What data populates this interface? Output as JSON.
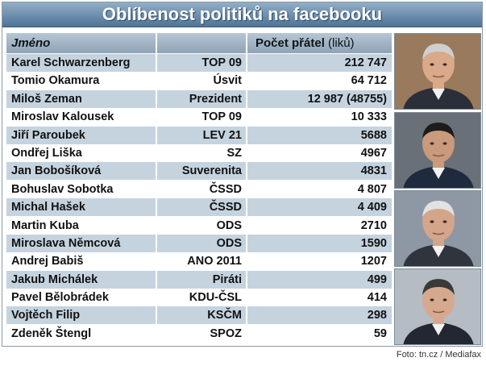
{
  "title": "Oblíbenost politiků na facebooku",
  "credit": "Foto: tn.cz / Mediafax",
  "chart_data": {
    "type": "table",
    "columns": [
      "Jméno",
      "",
      "Počet přátel"
    ],
    "count_unit": "(liků)",
    "rows": [
      {
        "name": "Karel Schwarzenberg",
        "party": "TOP 09",
        "count": "212 747"
      },
      {
        "name": "Tomio Okamura",
        "party": "Úsvit",
        "count": "64 712"
      },
      {
        "name": "Miloš Zeman",
        "party": "Prezident",
        "count": "12 987 (48755)"
      },
      {
        "name": "Miroslav Kalousek",
        "party": "TOP 09",
        "count": "10 333"
      },
      {
        "name": "Jiří Paroubek",
        "party": "LEV 21",
        "count": "5688"
      },
      {
        "name": "Ondřej Liška",
        "party": "SZ",
        "count": "4967"
      },
      {
        "name": "Jan Bobošíková",
        "party": "Suverenita",
        "count": "4831"
      },
      {
        "name": "Bohuslav Sobotka",
        "party": "ČSSD",
        "count": "4 807"
      },
      {
        "name": "Michal Hašek",
        "party": "ČSSD",
        "count": "4 409"
      },
      {
        "name": "Martin Kuba",
        "party": "ODS",
        "count": "2710"
      },
      {
        "name": "Miroslava Němcová",
        "party": "ODS",
        "count": "1590"
      },
      {
        "name": "Andrej Babiš",
        "party": "ANO 2011",
        "count": "1207"
      },
      {
        "name": "Jakub Michálek",
        "party": "Piráti",
        "count": "499"
      },
      {
        "name": "Pavel Bělobrádek",
        "party": "KDU-ČSL",
        "count": "414"
      },
      {
        "name": "Vojtěch Filip",
        "party": "KSČM",
        "count": "298"
      },
      {
        "name": "Zdeněk Štengl",
        "party": "SPOZ",
        "count": "59"
      }
    ]
  },
  "photos": [
    {
      "icon": "politician-portrait-1-icon",
      "bg": "#9a7a5c",
      "suit": "#2b2f3a",
      "skin": "#d9a98a",
      "hair": "#cfcfcf"
    },
    {
      "icon": "politician-portrait-2-icon",
      "bg": "#6a7078",
      "suit": "#1f2a3d",
      "skin": "#c99a7c",
      "hair": "#1c1c1c"
    },
    {
      "icon": "politician-portrait-3-icon",
      "bg": "#8d98a4",
      "suit": "#30343c",
      "skin": "#d3a58a",
      "hair": "#e2e2e2"
    },
    {
      "icon": "politician-portrait-4-icon",
      "bg": "#b5bcc4",
      "suit": "#232733",
      "skin": "#d6a98f",
      "hair": "#3a3a3a"
    }
  ]
}
